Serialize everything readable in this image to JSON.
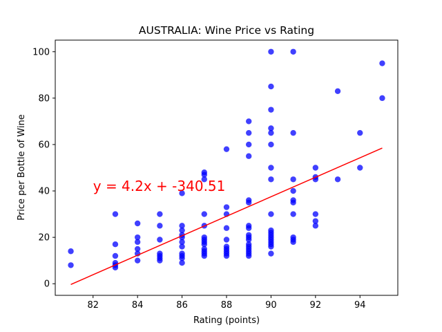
{
  "chart_data": {
    "type": "scatter",
    "title": "AUSTRALIA: Wine Price vs Rating",
    "xlabel": "Rating (points)",
    "ylabel": "Price per Bottle of Wine",
    "xlim": [
      80.3,
      95.7
    ],
    "ylim": [
      -5,
      105
    ],
    "xticks": [
      82,
      84,
      86,
      88,
      90,
      92,
      94
    ],
    "yticks": [
      0,
      20,
      40,
      60,
      80,
      100
    ],
    "grid": false,
    "point_color": "#0000ff",
    "line_color": "#ff0000",
    "points": [
      [
        81,
        14
      ],
      [
        81,
        8
      ],
      [
        83,
        30
      ],
      [
        83,
        17
      ],
      [
        83,
        12
      ],
      [
        83,
        9
      ],
      [
        83,
        8
      ],
      [
        83,
        7
      ],
      [
        84,
        26
      ],
      [
        84,
        20
      ],
      [
        84,
        18
      ],
      [
        84,
        15
      ],
      [
        84,
        13
      ],
      [
        84,
        10
      ],
      [
        85,
        30
      ],
      [
        85,
        25
      ],
      [
        85,
        19
      ],
      [
        85,
        13
      ],
      [
        85,
        12
      ],
      [
        85,
        11
      ],
      [
        85,
        10
      ],
      [
        86,
        39
      ],
      [
        86,
        25
      ],
      [
        86,
        23
      ],
      [
        86,
        21
      ],
      [
        86,
        20
      ],
      [
        86,
        18
      ],
      [
        86,
        16
      ],
      [
        86,
        13
      ],
      [
        86,
        12
      ],
      [
        86,
        11
      ],
      [
        86,
        9
      ],
      [
        87,
        48
      ],
      [
        87,
        47
      ],
      [
        87,
        45
      ],
      [
        87,
        30
      ],
      [
        87,
        25
      ],
      [
        87,
        20
      ],
      [
        87,
        19
      ],
      [
        87,
        18
      ],
      [
        87,
        17
      ],
      [
        87,
        15
      ],
      [
        87,
        14
      ],
      [
        87,
        13
      ],
      [
        87,
        12
      ],
      [
        88,
        58
      ],
      [
        88,
        33
      ],
      [
        88,
        30
      ],
      [
        88,
        24
      ],
      [
        88,
        19
      ],
      [
        88,
        16
      ],
      [
        88,
        15
      ],
      [
        88,
        14
      ],
      [
        88,
        13
      ],
      [
        88,
        12
      ],
      [
        89,
        70
      ],
      [
        89,
        65
      ],
      [
        89,
        60
      ],
      [
        89,
        55
      ],
      [
        89,
        36
      ],
      [
        89,
        35
      ],
      [
        89,
        25
      ],
      [
        89,
        24
      ],
      [
        89,
        21
      ],
      [
        89,
        20
      ],
      [
        89,
        19
      ],
      [
        89,
        17
      ],
      [
        89,
        16
      ],
      [
        89,
        15
      ],
      [
        89,
        14
      ],
      [
        89,
        13
      ],
      [
        89,
        12
      ],
      [
        90,
        100
      ],
      [
        90,
        85
      ],
      [
        90,
        75
      ],
      [
        90,
        67
      ],
      [
        90,
        65
      ],
      [
        90,
        60
      ],
      [
        90,
        50
      ],
      [
        90,
        45
      ],
      [
        90,
        30
      ],
      [
        90,
        23
      ],
      [
        90,
        22
      ],
      [
        90,
        21
      ],
      [
        90,
        20
      ],
      [
        90,
        19
      ],
      [
        90,
        18
      ],
      [
        90,
        17
      ],
      [
        90,
        16
      ],
      [
        90,
        13
      ],
      [
        91,
        100
      ],
      [
        91,
        65
      ],
      [
        91,
        45
      ],
      [
        91,
        40
      ],
      [
        91,
        36
      ],
      [
        91,
        35
      ],
      [
        91,
        30
      ],
      [
        91,
        20
      ],
      [
        91,
        19
      ],
      [
        91,
        18
      ],
      [
        92,
        50
      ],
      [
        92,
        46
      ],
      [
        92,
        45
      ],
      [
        92,
        30
      ],
      [
        92,
        27
      ],
      [
        92,
        25
      ],
      [
        93,
        83
      ],
      [
        93,
        45
      ],
      [
        94,
        65
      ],
      [
        94,
        50
      ],
      [
        95,
        95
      ],
      [
        95,
        80
      ]
    ],
    "regression": {
      "x_start": 81,
      "x_end": 95
    },
    "annotation": {
      "text": "y = 4.2x + -340.51",
      "x": 82,
      "y": 40,
      "color": "#ff0000"
    }
  }
}
